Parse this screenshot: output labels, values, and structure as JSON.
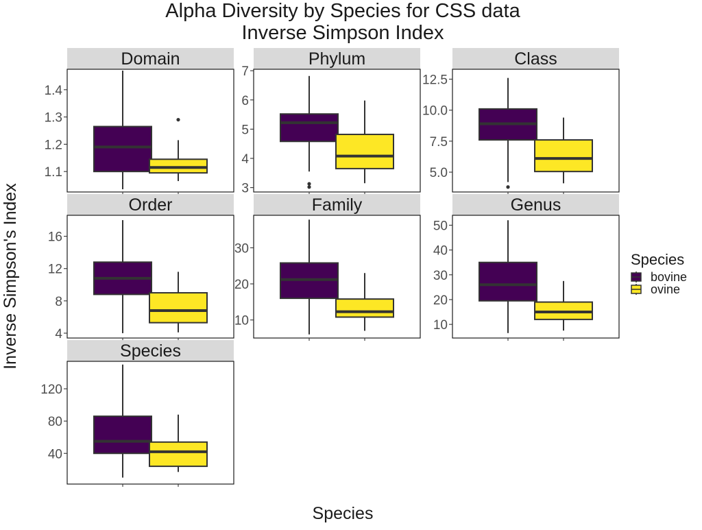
{
  "chart_data": {
    "type": "boxplot",
    "title_line1": "Alpha Diversity by Species for CSS data",
    "title_line2": "Inverse Simpson Index",
    "xlabel": "Species",
    "ylabel": "Inverse Simpson's Index",
    "categories": [
      "bovine",
      "ovine"
    ],
    "x_tick_labels_shown": false,
    "grid": false,
    "legend": {
      "title": "Species",
      "placement": "right",
      "entries": [
        {
          "label": "bovine",
          "color": "#440154"
        },
        {
          "label": "ovine",
          "color": "#FDE725"
        }
      ]
    },
    "facets": [
      {
        "name": "Domain",
        "ylim": [
          1.025,
          1.475
        ],
        "yticks": [
          1.1,
          1.2,
          1.3,
          1.4
        ],
        "ytick_labels": [
          "1.1",
          "1.2",
          "1.3",
          "1.4"
        ],
        "boxes": [
          {
            "group": "bovine",
            "min": 1.035,
            "q1": 1.1,
            "median": 1.19,
            "q3": 1.265,
            "max": 1.47,
            "outliers": []
          },
          {
            "group": "ovine",
            "min": 1.065,
            "q1": 1.095,
            "median": 1.115,
            "q3": 1.145,
            "max": 1.215,
            "outliers": [
              1.29
            ]
          }
        ]
      },
      {
        "name": "Phylum",
        "ylim": [
          2.85,
          7.05
        ],
        "yticks": [
          3,
          4,
          5,
          6,
          7
        ],
        "ytick_labels": [
          "3",
          "4",
          "5",
          "6",
          "7"
        ],
        "boxes": [
          {
            "group": "bovine",
            "min": 3.55,
            "q1": 4.58,
            "median": 5.22,
            "q3": 5.52,
            "max": 6.82,
            "outliers": [
              3.02,
              3.13
            ]
          },
          {
            "group": "ovine",
            "min": 3.15,
            "q1": 3.65,
            "median": 4.08,
            "q3": 4.82,
            "max": 5.98,
            "outliers": []
          }
        ]
      },
      {
        "name": "Class",
        "ylim": [
          3.4,
          13.3
        ],
        "yticks": [
          5.0,
          7.5,
          10.0,
          12.5
        ],
        "ytick_labels": [
          "5.0",
          "7.5",
          "10.0",
          "12.5"
        ],
        "boxes": [
          {
            "group": "bovine",
            "min": 4.2,
            "q1": 7.6,
            "median": 8.9,
            "q3": 10.1,
            "max": 12.6,
            "outliers": [
              3.8
            ]
          },
          {
            "group": "ovine",
            "min": 4.1,
            "q1": 5.05,
            "median": 6.1,
            "q3": 7.6,
            "max": 9.4,
            "outliers": []
          }
        ]
      },
      {
        "name": "Order",
        "ylim": [
          3.4,
          18.6
        ],
        "yticks": [
          4,
          8,
          12,
          16
        ],
        "ytick_labels": [
          "4",
          "8",
          "12",
          "16"
        ],
        "boxes": [
          {
            "group": "bovine",
            "min": 4.0,
            "q1": 8.8,
            "median": 10.8,
            "q3": 12.8,
            "max": 18.0,
            "outliers": []
          },
          {
            "group": "ovine",
            "min": 4.1,
            "q1": 5.3,
            "median": 6.8,
            "q3": 9.0,
            "max": 11.6,
            "outliers": []
          }
        ]
      },
      {
        "name": "Family",
        "ylim": [
          5.0,
          39.0
        ],
        "yticks": [
          10,
          20,
          30
        ],
        "ytick_labels": [
          "10",
          "20",
          "30"
        ],
        "boxes": [
          {
            "group": "bovine",
            "min": 6.0,
            "q1": 16.0,
            "median": 21.2,
            "q3": 25.8,
            "max": 37.8,
            "outliers": []
          },
          {
            "group": "ovine",
            "min": 7.0,
            "q1": 10.8,
            "median": 12.3,
            "q3": 15.8,
            "max": 23.0,
            "outliers": []
          }
        ]
      },
      {
        "name": "Genus",
        "ylim": [
          4.5,
          54.0
        ],
        "yticks": [
          10,
          20,
          30,
          40,
          50
        ],
        "ytick_labels": [
          "10",
          "20",
          "30",
          "40",
          "50"
        ],
        "boxes": [
          {
            "group": "bovine",
            "min": 6.5,
            "q1": 19.5,
            "median": 26.0,
            "q3": 35.0,
            "max": 52.0,
            "outliers": []
          },
          {
            "group": "ovine",
            "min": 7.5,
            "q1": 12.0,
            "median": 15.0,
            "q3": 19.0,
            "max": 27.5,
            "outliers": []
          }
        ]
      },
      {
        "name": "Species",
        "ylim": [
          2,
          154
        ],
        "yticks": [
          40,
          80,
          120
        ],
        "ytick_labels": [
          "40",
          "80",
          "120"
        ],
        "boxes": [
          {
            "group": "bovine",
            "min": 10,
            "q1": 40,
            "median": 55,
            "q3": 86,
            "max": 150,
            "outliers": []
          },
          {
            "group": "ovine",
            "min": 17,
            "q1": 24,
            "median": 42,
            "q3": 54,
            "max": 88,
            "outliers": []
          }
        ]
      }
    ]
  }
}
